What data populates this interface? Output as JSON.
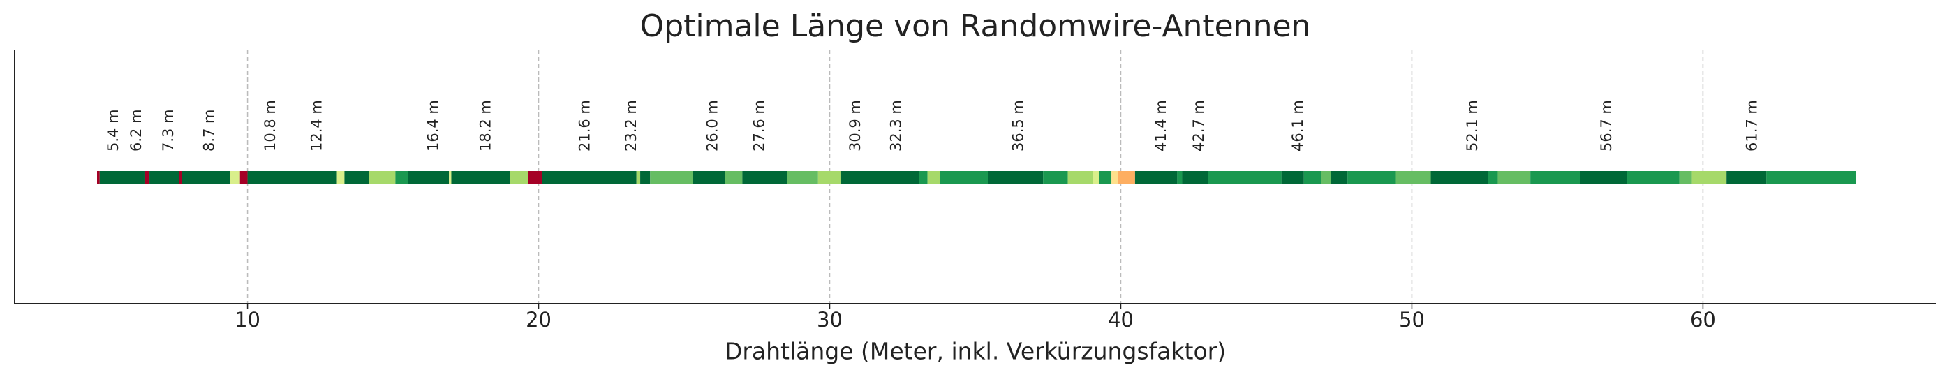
{
  "chart_data": {
    "type": "strip",
    "title": "Optimale Länge von Randomwire-Antennen",
    "x_label": "Drahtlänge (Meter, inkl. Verkürzungsfaktor)",
    "xlim": [
      2,
      68
    ],
    "xticks": [
      10,
      20,
      30,
      40,
      50,
      60
    ],
    "grid": true,
    "segments": [
      {
        "start": 4.83,
        "end": 4.92,
        "color": "#a50026"
      },
      {
        "start": 4.92,
        "end": 6.46,
        "color": "#006837"
      },
      {
        "start": 6.46,
        "end": 6.63,
        "color": "#a50026"
      },
      {
        "start": 6.63,
        "end": 7.65,
        "color": "#006837"
      },
      {
        "start": 7.65,
        "end": 7.74,
        "color": "#a50026"
      },
      {
        "start": 7.74,
        "end": 9.4,
        "color": "#006837"
      },
      {
        "start": 9.4,
        "end": 9.74,
        "color": "#d9ef8b"
      },
      {
        "start": 9.74,
        "end": 10.0,
        "color": "#a50026"
      },
      {
        "start": 10.0,
        "end": 13.07,
        "color": "#006837"
      },
      {
        "start": 13.07,
        "end": 13.33,
        "color": "#d9ef8b"
      },
      {
        "start": 13.33,
        "end": 14.18,
        "color": "#006837"
      },
      {
        "start": 14.18,
        "end": 15.08,
        "color": "#a6d96a"
      },
      {
        "start": 15.08,
        "end": 15.51,
        "color": "#1a9850"
      },
      {
        "start": 15.51,
        "end": 16.92,
        "color": "#006837"
      },
      {
        "start": 16.92,
        "end": 17.0,
        "color": "#d9ef8b"
      },
      {
        "start": 17.0,
        "end": 19.01,
        "color": "#006837"
      },
      {
        "start": 19.01,
        "end": 19.65,
        "color": "#a6d96a"
      },
      {
        "start": 19.65,
        "end": 20.12,
        "color": "#a50026"
      },
      {
        "start": 20.12,
        "end": 23.36,
        "color": "#006837"
      },
      {
        "start": 23.36,
        "end": 23.49,
        "color": "#a6d96a"
      },
      {
        "start": 23.49,
        "end": 23.83,
        "color": "#006837"
      },
      {
        "start": 23.83,
        "end": 25.29,
        "color": "#66bd63"
      },
      {
        "start": 25.29,
        "end": 26.4,
        "color": "#006837"
      },
      {
        "start": 26.4,
        "end": 27.0,
        "color": "#66bd63"
      },
      {
        "start": 27.0,
        "end": 28.53,
        "color": "#006837"
      },
      {
        "start": 28.53,
        "end": 29.6,
        "color": "#66bd63"
      },
      {
        "start": 29.6,
        "end": 30.37,
        "color": "#a6d96a"
      },
      {
        "start": 30.37,
        "end": 33.06,
        "color": "#006837"
      },
      {
        "start": 33.06,
        "end": 33.36,
        "color": "#1a9850"
      },
      {
        "start": 33.36,
        "end": 33.78,
        "color": "#a6d96a"
      },
      {
        "start": 33.78,
        "end": 35.45,
        "color": "#1a9850"
      },
      {
        "start": 35.45,
        "end": 37.33,
        "color": "#006837"
      },
      {
        "start": 37.33,
        "end": 38.18,
        "color": "#1a9850"
      },
      {
        "start": 38.18,
        "end": 39.03,
        "color": "#a6d96a"
      },
      {
        "start": 39.03,
        "end": 39.25,
        "color": "#d9ef8b"
      },
      {
        "start": 39.25,
        "end": 39.68,
        "color": "#1a9850"
      },
      {
        "start": 39.68,
        "end": 39.89,
        "color": "#fee08b"
      },
      {
        "start": 39.89,
        "end": 40.49,
        "color": "#fdae61"
      },
      {
        "start": 40.49,
        "end": 41.94,
        "color": "#006837"
      },
      {
        "start": 41.94,
        "end": 42.11,
        "color": "#1a9850"
      },
      {
        "start": 42.11,
        "end": 43.01,
        "color": "#006837"
      },
      {
        "start": 43.01,
        "end": 45.52,
        "color": "#1a9850"
      },
      {
        "start": 45.52,
        "end": 46.29,
        "color": "#006837"
      },
      {
        "start": 46.29,
        "end": 46.89,
        "color": "#1a9850"
      },
      {
        "start": 46.89,
        "end": 47.23,
        "color": "#66bd63"
      },
      {
        "start": 47.23,
        "end": 47.79,
        "color": "#006837"
      },
      {
        "start": 47.79,
        "end": 49.45,
        "color": "#1a9850"
      },
      {
        "start": 49.45,
        "end": 50.65,
        "color": "#66bd63"
      },
      {
        "start": 50.65,
        "end": 52.61,
        "color": "#006837"
      },
      {
        "start": 52.61,
        "end": 52.95,
        "color": "#1a9850"
      },
      {
        "start": 52.95,
        "end": 54.07,
        "color": "#66bd63"
      },
      {
        "start": 54.07,
        "end": 55.77,
        "color": "#1a9850"
      },
      {
        "start": 55.77,
        "end": 57.4,
        "color": "#006837"
      },
      {
        "start": 57.4,
        "end": 59.19,
        "color": "#1a9850"
      },
      {
        "start": 59.19,
        "end": 59.62,
        "color": "#66bd63"
      },
      {
        "start": 59.62,
        "end": 60.81,
        "color": "#a6d96a"
      },
      {
        "start": 60.81,
        "end": 62.18,
        "color": "#006837"
      },
      {
        "start": 62.18,
        "end": 65.25,
        "color": "#1a9850"
      }
    ],
    "annotations": [
      {
        "value": 5.4,
        "label": "5.4 m"
      },
      {
        "value": 6.2,
        "label": "6.2 m"
      },
      {
        "value": 7.3,
        "label": "7.3 m"
      },
      {
        "value": 8.7,
        "label": "8.7 m"
      },
      {
        "value": 10.8,
        "label": "10.8 m"
      },
      {
        "value": 12.4,
        "label": "12.4 m"
      },
      {
        "value": 16.4,
        "label": "16.4 m"
      },
      {
        "value": 18.2,
        "label": "18.2 m"
      },
      {
        "value": 21.6,
        "label": "21.6 m"
      },
      {
        "value": 23.2,
        "label": "23.2 m"
      },
      {
        "value": 26.0,
        "label": "26.0 m"
      },
      {
        "value": 27.6,
        "label": "27.6 m"
      },
      {
        "value": 30.9,
        "label": "30.9 m"
      },
      {
        "value": 32.3,
        "label": "32.3 m"
      },
      {
        "value": 36.5,
        "label": "36.5 m"
      },
      {
        "value": 41.4,
        "label": "41.4 m"
      },
      {
        "value": 42.7,
        "label": "42.7 m"
      },
      {
        "value": 46.1,
        "label": "46.1 m"
      },
      {
        "value": 52.1,
        "label": "52.1 m"
      },
      {
        "value": 56.7,
        "label": "56.7 m"
      },
      {
        "value": 61.7,
        "label": "61.7 m"
      }
    ]
  }
}
